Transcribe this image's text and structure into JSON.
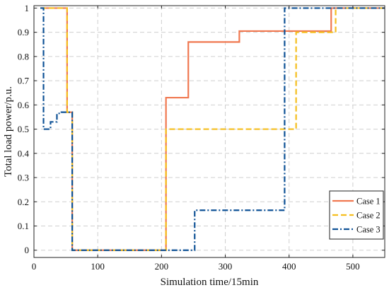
{
  "chart_data": {
    "type": "line",
    "xlabel": "Simulation time/15min",
    "ylabel": "Total load power/p.u.",
    "xlim": [
      0,
      550
    ],
    "ylim": [
      -0.03,
      1.01
    ],
    "xticks": [
      0,
      100,
      200,
      300,
      400,
      500
    ],
    "yticks": [
      0,
      0.1,
      0.2,
      0.3,
      0.4,
      0.5,
      0.6,
      0.7,
      0.8,
      0.9,
      1
    ],
    "ytick_labels": [
      "0",
      "0.1",
      "0.2",
      "0.3",
      "0.4",
      "0.5",
      "0.6",
      "0.7",
      "0.8",
      "0.9",
      "1"
    ],
    "grid": true,
    "legend_position": "bottom-right",
    "step": true,
    "series": [
      {
        "name": "Case 1",
        "color": "#F07850",
        "style": "solid",
        "x": [
          10,
          52,
          60,
          207,
          242,
          322,
          466,
          550
        ],
        "y": [
          1.0,
          0.57,
          0.0,
          0.63,
          0.86,
          0.905,
          1.0,
          1.0
        ]
      },
      {
        "name": "Case 2",
        "color": "#F5BE1E",
        "style": "dashed",
        "x": [
          10,
          52,
          60,
          207,
          411,
          473,
          550
        ],
        "y": [
          1.0,
          0.57,
          0.0,
          0.5,
          0.9,
          1.0,
          1.0
        ]
      },
      {
        "name": "Case 3",
        "color": "#0F5296",
        "style": "dashdot",
        "x": [
          10,
          15,
          26,
          36,
          43,
          60,
          252,
          393,
          550
        ],
        "y": [
          1.0,
          0.5,
          0.53,
          0.565,
          0.57,
          0.0,
          0.165,
          1.0,
          1.0
        ]
      }
    ]
  }
}
